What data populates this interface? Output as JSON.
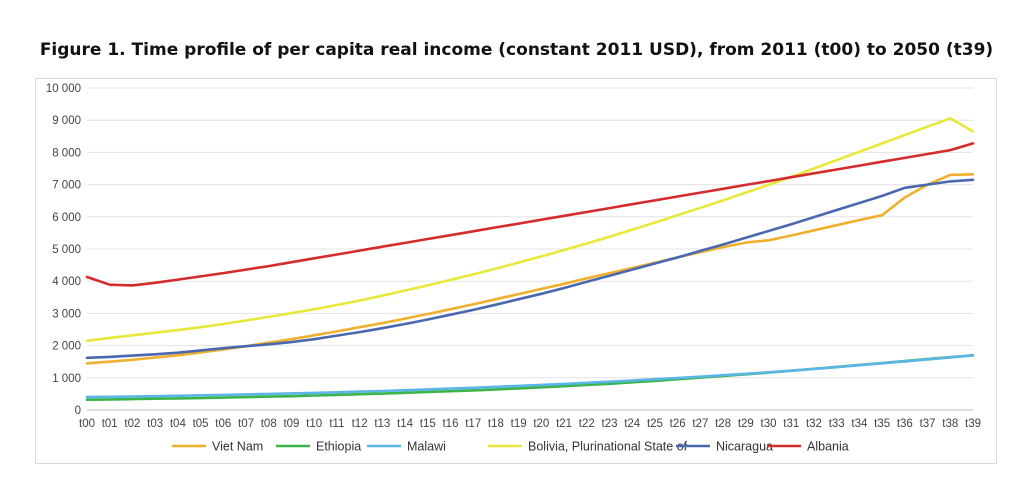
{
  "chart_data": {
    "type": "line",
    "title": "Figure 1. Time profile of per capita real income (constant 2011 USD), from 2011 (t00) to 2050 (t39)",
    "xlabel": "",
    "ylabel": "",
    "ylim": [
      0,
      10000
    ],
    "yticks": [
      0,
      1000,
      2000,
      3000,
      4000,
      5000,
      6000,
      7000,
      8000,
      9000,
      10000
    ],
    "ytick_labels": [
      "0",
      "1 000",
      "2 000",
      "3 000",
      "4 000",
      "5 000",
      "6 000",
      "7 000",
      "8 000",
      "9 000",
      "10 000"
    ],
    "grid": "horizontal",
    "legend_position": "bottom",
    "categories": [
      "t00",
      "t01",
      "t02",
      "t03",
      "t04",
      "t05",
      "t06",
      "t07",
      "t08",
      "t09",
      "t10",
      "t11",
      "t12",
      "t13",
      "t14",
      "t15",
      "t16",
      "t17",
      "t18",
      "t19",
      "t20",
      "t21",
      "t22",
      "t23",
      "t24",
      "t25",
      "t26",
      "t27",
      "t28",
      "t29",
      "t30",
      "t31",
      "t32",
      "t33",
      "t34",
      "t35",
      "t36",
      "t37",
      "t38",
      "t39"
    ],
    "series": [
      {
        "name": "Viet Nam",
        "color": "#f0b02e",
        "values": [
          1450,
          1500,
          1560,
          1630,
          1700,
          1790,
          1880,
          1980,
          2090,
          2200,
          2320,
          2440,
          2570,
          2700,
          2840,
          2980,
          3130,
          3280,
          3440,
          3600,
          3760,
          3920,
          4090,
          4250,
          4410,
          4570,
          4740,
          4900,
          5060,
          5200,
          5270,
          5420,
          5580,
          5740,
          5900,
          6050,
          6600,
          7000,
          7300,
          7320
        ]
      },
      {
        "name": "Ethiopia",
        "color": "#3bb54a",
        "values": [
          320,
          330,
          340,
          350,
          360,
          370,
          385,
          400,
          415,
          430,
          450,
          470,
          490,
          510,
          535,
          560,
          585,
          610,
          640,
          670,
          705,
          740,
          775,
          815,
          860,
          905,
          955,
          1005,
          1055,
          1110,
          1160,
          1220,
          1280,
          1340,
          1400,
          1460,
          1520,
          1580,
          1640,
          1700
        ]
      },
      {
        "name": "Malawi",
        "color": "#5bb5e6",
        "values": [
          400,
          410,
          420,
          430,
          440,
          455,
          470,
          485,
          500,
          515,
          530,
          550,
          570,
          590,
          615,
          640,
          665,
          690,
          720,
          750,
          780,
          810,
          845,
          880,
          915,
          955,
          995,
          1035,
          1080,
          1125,
          1170,
          1220,
          1275,
          1330,
          1390,
          1450,
          1510,
          1570,
          1635,
          1700
        ]
      },
      {
        "name": "Bolivia, Plurinational State of",
        "color": "#e8e83a",
        "values": [
          2150,
          2240,
          2320,
          2400,
          2480,
          2570,
          2670,
          2780,
          2890,
          3010,
          3130,
          3260,
          3400,
          3550,
          3710,
          3870,
          4040,
          4210,
          4390,
          4580,
          4770,
          4970,
          5170,
          5380,
          5600,
          5820,
          6050,
          6280,
          6510,
          6750,
          6990,
          7240,
          7500,
          7760,
          8020,
          8280,
          8540,
          8800,
          9060,
          8650
        ]
      },
      {
        "name": "Nicaragua",
        "color": "#4a68b0",
        "values": [
          1620,
          1650,
          1690,
          1730,
          1780,
          1850,
          1920,
          1980,
          2040,
          2110,
          2200,
          2310,
          2420,
          2540,
          2670,
          2810,
          2960,
          3110,
          3270,
          3440,
          3610,
          3790,
          3980,
          4170,
          4360,
          4550,
          4740,
          4940,
          5140,
          5350,
          5560,
          5770,
          5990,
          6210,
          6430,
          6650,
          6900,
          7000,
          7100,
          7150
        ]
      },
      {
        "name": "Albania",
        "color": "#d62b2b",
        "values": [
          4130,
          3890,
          3870,
          3950,
          4050,
          4150,
          4250,
          4360,
          4470,
          4590,
          4710,
          4830,
          4950,
          5070,
          5190,
          5310,
          5430,
          5550,
          5670,
          5790,
          5910,
          6030,
          6150,
          6270,
          6390,
          6510,
          6630,
          6750,
          6870,
          6990,
          7110,
          7230,
          7350,
          7470,
          7590,
          7710,
          7830,
          7950,
          8070,
          8280
        ]
      }
    ]
  }
}
